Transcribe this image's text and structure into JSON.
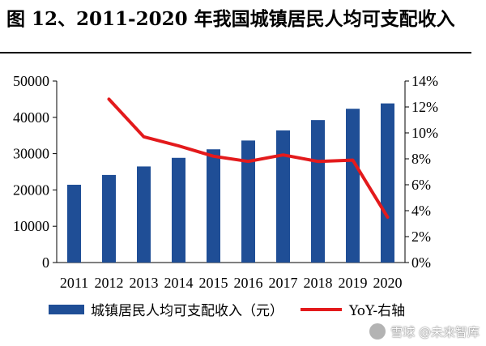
{
  "chart_data": {
    "type": "bar",
    "title": "图 12、2011-2020 年我国城镇居民人均可支配收入",
    "categories": [
      "2011",
      "2012",
      "2013",
      "2014",
      "2015",
      "2016",
      "2017",
      "2018",
      "2019",
      "2020"
    ],
    "series": [
      {
        "name": "城镇居民人均可支配收入（元）",
        "type": "bar",
        "axis": "left",
        "color": "#1F4E96",
        "values": [
          21427,
          24127,
          26467,
          28844,
          31195,
          33616,
          36396,
          39251,
          42359,
          43834
        ]
      },
      {
        "name": "YoY-右轴",
        "type": "line",
        "axis": "right",
        "color": "#E31A1C",
        "values": [
          null,
          12.6,
          9.7,
          9.0,
          8.2,
          7.8,
          8.3,
          7.8,
          7.9,
          3.5
        ]
      }
    ],
    "y_left": {
      "min": 0,
      "max": 50000,
      "ticks": [
        "0",
        "10000",
        "20000",
        "30000",
        "40000",
        "50000"
      ]
    },
    "y_right": {
      "min": 0,
      "max": 14,
      "ticks": [
        "0%",
        "2%",
        "4%",
        "6%",
        "8%",
        "10%",
        "12%",
        "14%"
      ]
    },
    "legend": {
      "placement": "bottom"
    },
    "grid": false
  },
  "watermark": {
    "text": "雪球 @未来智库",
    "icon": "snowball-icon"
  }
}
